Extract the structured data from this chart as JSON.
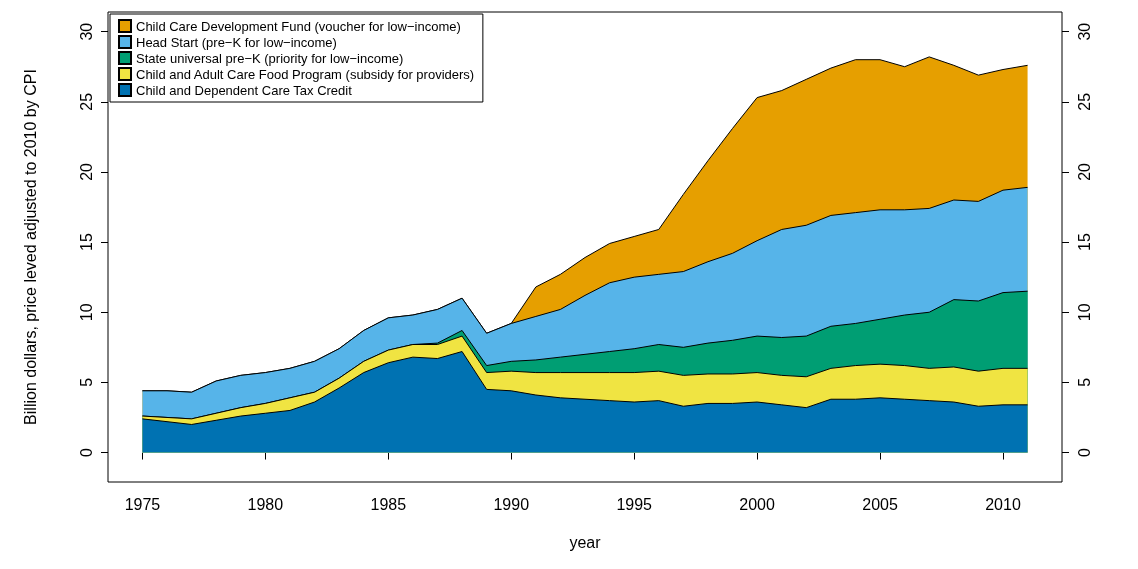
{
  "chart_data": {
    "type": "area",
    "stacked": true,
    "xlabel": "year",
    "ylabel": "Billion dollars, price leved adjusted to 2010 by CPI",
    "x": [
      1975,
      1976,
      1977,
      1978,
      1979,
      1980,
      1981,
      1982,
      1983,
      1984,
      1985,
      1986,
      1987,
      1988,
      1989,
      1990,
      1991,
      1992,
      1993,
      1994,
      1995,
      1996,
      1997,
      1998,
      1999,
      2000,
      2001,
      2002,
      2003,
      2004,
      2005,
      2006,
      2007,
      2008,
      2009,
      2010,
      2011
    ],
    "series": [
      {
        "name": "Child and Dependent Care Tax Credit",
        "color": "#0072b2",
        "values": [
          2.4,
          2.2,
          2.0,
          2.3,
          2.6,
          2.8,
          3.0,
          3.6,
          4.6,
          5.7,
          6.4,
          6.8,
          6.7,
          7.2,
          4.5,
          4.4,
          4.1,
          3.9,
          3.8,
          3.7,
          3.6,
          3.7,
          3.3,
          3.5,
          3.5,
          3.6,
          3.4,
          3.2,
          3.8,
          3.8,
          3.9,
          3.8,
          3.7,
          3.6,
          3.3,
          3.4,
          3.4
        ]
      },
      {
        "name": "Child and Adult Care Food Program (subsidy for providers)",
        "color": "#f0e442",
        "values": [
          0.2,
          0.3,
          0.4,
          0.5,
          0.6,
          0.7,
          0.9,
          0.7,
          0.7,
          0.8,
          0.9,
          0.9,
          1.0,
          1.1,
          1.2,
          1.4,
          1.6,
          1.8,
          1.9,
          2.0,
          2.1,
          2.1,
          2.2,
          2.1,
          2.1,
          2.1,
          2.1,
          2.2,
          2.2,
          2.4,
          2.4,
          2.4,
          2.3,
          2.5,
          2.5,
          2.6,
          2.6
        ]
      },
      {
        "name": "State universal pre−K (priority for low−income)",
        "color": "#009e73",
        "values": [
          0,
          0,
          0,
          0,
          0,
          0,
          0,
          0,
          0,
          0,
          0,
          0,
          0.1,
          0.4,
          0.5,
          0.7,
          0.9,
          1.1,
          1.3,
          1.5,
          1.7,
          1.9,
          2.0,
          2.2,
          2.4,
          2.6,
          2.7,
          2.9,
          3.0,
          3.0,
          3.2,
          3.6,
          4.0,
          4.8,
          5.0,
          5.4,
          5.5
        ]
      },
      {
        "name": "Head Start (pre−K for low−income)",
        "color": "#56b4e9",
        "values": [
          1.8,
          1.9,
          1.9,
          2.3,
          2.3,
          2.2,
          2.1,
          2.2,
          2.1,
          2.2,
          2.3,
          2.1,
          2.4,
          2.3,
          2.3,
          2.7,
          3.1,
          3.4,
          4.2,
          4.9,
          5.1,
          5.0,
          5.4,
          5.8,
          6.2,
          6.8,
          7.7,
          7.9,
          7.9,
          7.9,
          7.8,
          7.5,
          7.4,
          7.1,
          7.1,
          7.3,
          7.4
        ]
      },
      {
        "name": "Child Care Development Fund (voucher for low−income)",
        "color": "#e69f00",
        "values": [
          0,
          0,
          0,
          0,
          0,
          0,
          0,
          0,
          0,
          0,
          0,
          0,
          0,
          0,
          0,
          0,
          2.1,
          2.5,
          2.7,
          2.8,
          2.9,
          3.2,
          5.5,
          7.2,
          8.9,
          10.2,
          9.9,
          10.4,
          10.5,
          10.9,
          10.7,
          10.2,
          10.8,
          9.6,
          9.0,
          8.6,
          8.7
        ]
      }
    ],
    "xlim": [
      1973.6,
      2012.4
    ],
    "xticks": [
      1975,
      1980,
      1985,
      1990,
      1995,
      2000,
      2005,
      2010
    ],
    "ylim": [
      -2.1,
      31.4
    ],
    "yticks": [
      0,
      5,
      10,
      15,
      20,
      25,
      30
    ],
    "y2lim": [
      -2.1,
      31.4
    ],
    "y2ticks": [
      0,
      5,
      10,
      15,
      20,
      25,
      30
    ],
    "grid": false,
    "legend": "top left"
  }
}
